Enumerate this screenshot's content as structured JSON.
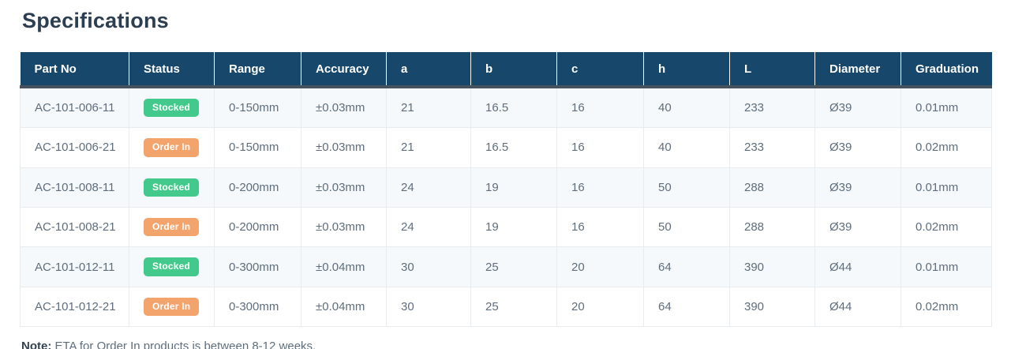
{
  "title": "Specifications",
  "colors": {
    "header_bg": "#17486c",
    "header_underline": "#46525e",
    "stocked_badge": "#42c98b",
    "order_in_badge": "#f3a36c",
    "zebra_row": "#f6f9fb",
    "text": "#5f6e7d"
  },
  "table": {
    "columns": [
      {
        "key": "part_no",
        "label": "Part No"
      },
      {
        "key": "status",
        "label": "Status"
      },
      {
        "key": "range",
        "label": "Range"
      },
      {
        "key": "accuracy",
        "label": "Accuracy"
      },
      {
        "key": "a",
        "label": "a"
      },
      {
        "key": "b",
        "label": "b"
      },
      {
        "key": "c",
        "label": "c"
      },
      {
        "key": "h",
        "label": "h"
      },
      {
        "key": "l",
        "label": "L"
      },
      {
        "key": "diameter",
        "label": "Diameter"
      },
      {
        "key": "graduation",
        "label": "Graduation"
      }
    ],
    "rows": [
      {
        "part_no": "AC-101-006-11",
        "status": {
          "label": "Stocked",
          "variant": "stocked"
        },
        "range": "0-150mm",
        "accuracy": "±0.03mm",
        "a": "21",
        "b": "16.5",
        "c": "16",
        "h": "40",
        "l": "233",
        "diameter": "Ø39",
        "graduation": "0.01mm"
      },
      {
        "part_no": "AC-101-006-21",
        "status": {
          "label": "Order In",
          "variant": "order-in"
        },
        "range": "0-150mm",
        "accuracy": "±0.03mm",
        "a": "21",
        "b": "16.5",
        "c": "16",
        "h": "40",
        "l": "233",
        "diameter": "Ø39",
        "graduation": "0.02mm"
      },
      {
        "part_no": "AC-101-008-11",
        "status": {
          "label": "Stocked",
          "variant": "stocked"
        },
        "range": "0-200mm",
        "accuracy": "±0.03mm",
        "a": "24",
        "b": "19",
        "c": "16",
        "h": "50",
        "l": "288",
        "diameter": "Ø39",
        "graduation": "0.01mm"
      },
      {
        "part_no": "AC-101-008-21",
        "status": {
          "label": "Order In",
          "variant": "order-in"
        },
        "range": "0-200mm",
        "accuracy": "±0.03mm",
        "a": "24",
        "b": "19",
        "c": "16",
        "h": "50",
        "l": "288",
        "diameter": "Ø39",
        "graduation": "0.02mm"
      },
      {
        "part_no": "AC-101-012-11",
        "status": {
          "label": "Stocked",
          "variant": "stocked"
        },
        "range": "0-300mm",
        "accuracy": "±0.04mm",
        "a": "30",
        "b": "25",
        "c": "20",
        "h": "64",
        "l": "390",
        "diameter": "Ø44",
        "graduation": "0.01mm"
      },
      {
        "part_no": "AC-101-012-21",
        "status": {
          "label": "Order In",
          "variant": "order-in"
        },
        "range": "0-300mm",
        "accuracy": "±0.04mm",
        "a": "30",
        "b": "25",
        "c": "20",
        "h": "64",
        "l": "390",
        "diameter": "Ø44",
        "graduation": "0.02mm"
      }
    ]
  },
  "note": {
    "label": "Note:",
    "text": " ETA for Order In products is between 8-12 weeks."
  }
}
